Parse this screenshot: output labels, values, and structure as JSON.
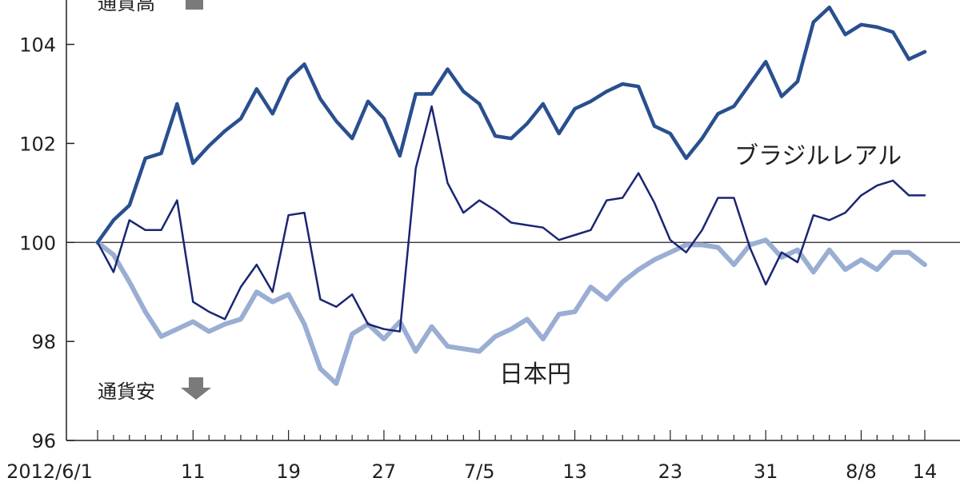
{
  "chart_data": {
    "type": "line",
    "x_tick_labels": [
      "2012/6/1",
      "11",
      "19",
      "27",
      "7/5",
      "13",
      "23",
      "31",
      "8/8",
      "14"
    ],
    "x_tick_index": [
      0,
      6,
      12,
      18,
      24,
      30,
      36,
      42,
      48,
      52
    ],
    "x_count": 53,
    "ylim": [
      96,
      104.8
    ],
    "yticks": [
      96,
      98,
      100,
      102,
      104
    ],
    "baseline": 100,
    "annotations": {
      "up": "通貨高",
      "down": "通貨安"
    },
    "series": [
      {
        "name": "",
        "color": "#2a4f8f",
        "width": 4.5,
        "values": [
          100.0,
          100.45,
          100.75,
          101.7,
          101.8,
          102.8,
          101.6,
          101.95,
          102.25,
          102.5,
          103.1,
          102.6,
          103.3,
          103.6,
          102.9,
          102.45,
          102.1,
          102.85,
          102.5,
          101.75,
          103.0,
          103.0,
          103.5,
          103.05,
          102.8,
          102.15,
          102.1,
          102.4,
          102.8,
          102.2,
          102.7,
          102.85,
          103.05,
          103.2,
          103.15,
          102.35,
          102.2,
          101.7,
          102.1,
          102.6,
          102.75,
          103.2,
          103.65,
          102.95,
          103.25,
          104.45,
          104.75,
          104.2,
          104.4,
          104.35,
          104.25,
          103.7,
          103.85
        ]
      },
      {
        "name": "ブラジルレアル",
        "color": "#1a2672",
        "width": 2.5,
        "values": [
          100.0,
          99.4,
          100.45,
          100.25,
          100.25,
          100.85,
          98.8,
          98.6,
          98.45,
          99.1,
          99.55,
          99.0,
          100.55,
          100.6,
          98.85,
          98.7,
          98.95,
          98.35,
          98.25,
          98.2,
          101.5,
          102.75,
          101.2,
          100.6,
          100.85,
          100.65,
          100.4,
          100.35,
          100.3,
          100.05,
          100.15,
          100.25,
          100.85,
          100.9,
          101.4,
          100.8,
          100.05,
          99.8,
          100.25,
          100.9,
          100.9,
          99.9,
          99.15,
          99.8,
          99.6,
          100.55,
          100.45,
          100.6,
          100.95,
          101.15,
          101.25,
          100.95,
          100.95
        ]
      },
      {
        "name": "日本円",
        "color": "#9aaed3",
        "width": 6,
        "values": [
          100.0,
          99.75,
          99.2,
          98.6,
          98.1,
          98.25,
          98.4,
          98.2,
          98.35,
          98.45,
          99.0,
          98.8,
          98.95,
          98.35,
          97.45,
          97.15,
          98.15,
          98.35,
          98.05,
          98.4,
          97.8,
          98.3,
          97.9,
          97.85,
          97.8,
          98.1,
          98.25,
          98.45,
          98.05,
          98.55,
          98.6,
          99.1,
          98.85,
          99.2,
          99.45,
          99.65,
          99.8,
          99.95,
          99.95,
          99.9,
          99.55,
          99.95,
          100.05,
          99.7,
          99.85,
          99.4,
          99.85,
          99.45,
          99.65,
          99.45,
          99.8,
          99.8,
          99.55
        ]
      }
    ]
  }
}
